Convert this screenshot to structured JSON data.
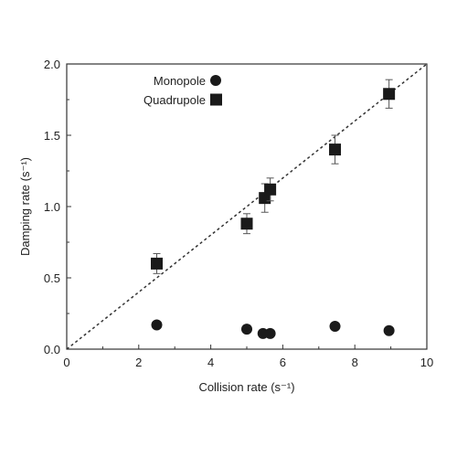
{
  "chart_data": {
    "type": "scatter",
    "xlabel": "Collision rate (s⁻¹)",
    "ylabel": "Damping rate (s⁻¹)",
    "xlim": [
      0,
      10
    ],
    "ylim": [
      0,
      2.0
    ],
    "x_ticks": [
      "0",
      "2",
      "4",
      "6",
      "8",
      "10"
    ],
    "y_ticks": [
      "0.0",
      "0.5",
      "1.0",
      "1.5",
      "2.0"
    ],
    "grid": false,
    "legend_position": "top-left",
    "reference_line": {
      "style": "dashed",
      "x": [
        0,
        10
      ],
      "y": [
        0,
        2.0
      ]
    },
    "series": [
      {
        "name": "Monopole",
        "marker": "circle",
        "color": "#1a1a1a",
        "points": [
          {
            "x": 2.5,
            "y": 0.17
          },
          {
            "x": 5.0,
            "y": 0.14
          },
          {
            "x": 5.45,
            "y": 0.11
          },
          {
            "x": 5.65,
            "y": 0.11
          },
          {
            "x": 7.45,
            "y": 0.16
          },
          {
            "x": 8.95,
            "y": 0.13
          }
        ]
      },
      {
        "name": "Quadrupole",
        "marker": "square",
        "color": "#1a1a1a",
        "points": [
          {
            "x": 2.5,
            "y": 0.6,
            "err": 0.07
          },
          {
            "x": 5.0,
            "y": 0.88,
            "err": 0.07
          },
          {
            "x": 5.5,
            "y": 1.06,
            "err": 0.1
          },
          {
            "x": 5.65,
            "y": 1.12,
            "err": 0.08
          },
          {
            "x": 7.45,
            "y": 1.4,
            "err": 0.1
          },
          {
            "x": 8.95,
            "y": 1.79,
            "err": 0.1
          }
        ]
      }
    ]
  }
}
